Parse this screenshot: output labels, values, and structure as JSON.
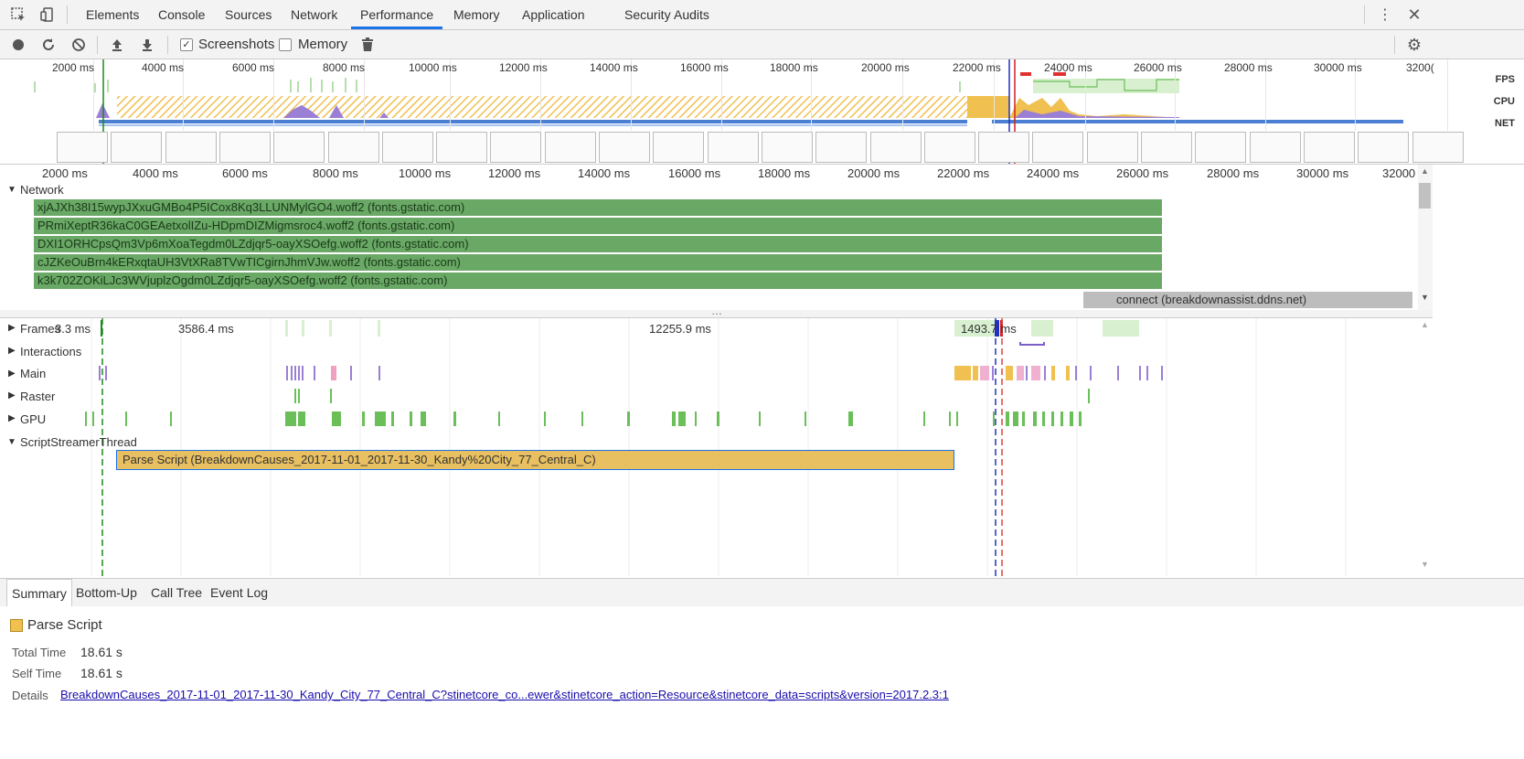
{
  "tabs": [
    "Elements",
    "Console",
    "Sources",
    "Network",
    "Performance",
    "Memory",
    "Application",
    "Security",
    "Audits"
  ],
  "active_tab": "Performance",
  "toolbar": {
    "screenshots_label": "Screenshots",
    "screenshots_checked": true,
    "memory_label": "Memory",
    "memory_checked": false
  },
  "overview": {
    "ticks": [
      "2000 ms",
      "4000 ms",
      "6000 ms",
      "8000 ms",
      "10000 ms",
      "12000 ms",
      "14000 ms",
      "16000 ms",
      "18000 ms",
      "20000 ms",
      "22000 ms",
      "24000 ms",
      "26000 ms",
      "28000 ms",
      "30000 ms",
      "3200("
    ],
    "fps_label": "FPS",
    "cpu_label": "CPU",
    "net_label": "NET"
  },
  "ruler": {
    "ticks": [
      "2000 ms",
      "4000 ms",
      "6000 ms",
      "8000 ms",
      "10000 ms",
      "12000 ms",
      "14000 ms",
      "16000 ms",
      "18000 ms",
      "20000 ms",
      "22000 ms",
      "24000 ms",
      "26000 ms",
      "28000 ms",
      "30000 ms",
      "32000"
    ]
  },
  "network": {
    "label": "Network",
    "rows": [
      "xjAJXh38I15wypJXxuGMBo4P5ICox8Kq3LLUNMylGO4.woff2 (fonts.gstatic.com)",
      "PRmiXeptR36kaC0GEAetxolIZu-HDpmDIZMigmsroc4.woff2 (fonts.gstatic.com)",
      "DXI1ORHCpsQm3Vp6mXoaTegdm0LZdjqr5-oayXSOefg.woff2 (fonts.gstatic.com)",
      "cJZKeOuBrn4kERxqtaUH3VtXRa8TVwTICgirnJhmVJw.woff2 (fonts.gstatic.com)",
      "k3k702ZOKiLJc3WVjuplzOgdm0LZdjqr5-oayXSOefg.woff2 (fonts.gstatic.com)"
    ],
    "connect_label": "connect (breakdownassist.ddns.net)"
  },
  "tracks": {
    "frames_label": "Frames",
    "frames_values": [
      "3.3 ms",
      "3586.4 ms",
      "12255.9 ms",
      "1493.7 ms"
    ],
    "interactions_label": "Interactions",
    "main_label": "Main",
    "raster_label": "Raster",
    "gpu_label": "GPU",
    "script_label": "ScriptStreamerThread",
    "parse_script_bar": "Parse Script (BreakdownCauses_2017-11-01_2017-11-30_Kandy%20City_77_Central_C)"
  },
  "bottom": {
    "tabs": [
      "Summary",
      "Bottom-Up",
      "Call Tree",
      "Event Log"
    ],
    "active": "Summary",
    "title": "Parse Script",
    "title_color": "#f0c050",
    "total_time_key": "Total Time",
    "total_time": "18.61 s",
    "self_time_key": "Self Time",
    "self_time": "18.61 s",
    "details_key": "Details",
    "details_link": "BreakdownCauses_2017-11-01_2017-11-30_Kandy_City_77_Central_C?stinetcore_co...ewer&stinetcore_action=Resource&stinetcore_data=scripts&version=2017.2.3:1"
  },
  "colors": {
    "accent": "#1a73e8",
    "network_bar": "#6aa866",
    "parse_script": "#e8c062",
    "cpu_script": "#f0c050",
    "cpu_render": "#9b7fd4",
    "fps": "#6bbf59"
  }
}
